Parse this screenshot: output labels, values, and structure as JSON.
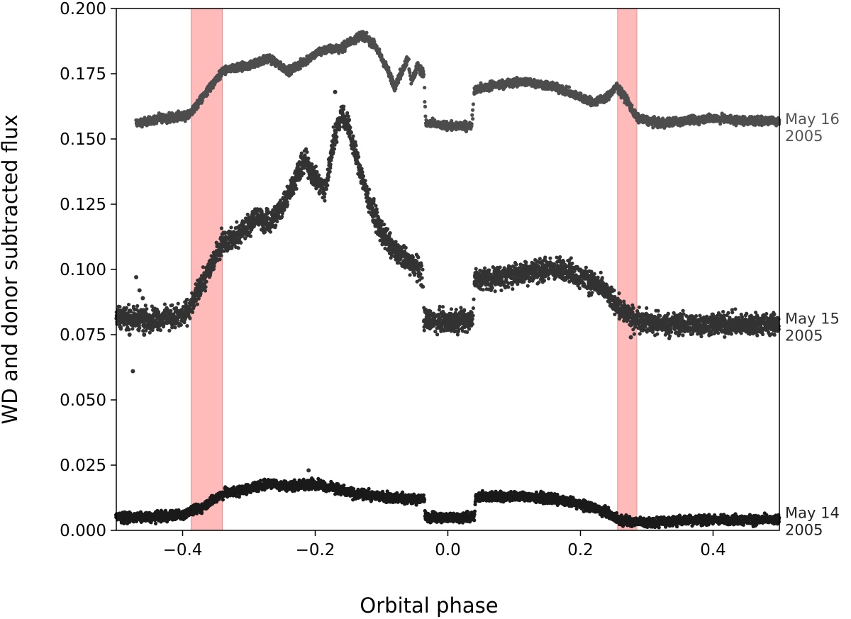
{
  "chart_data": {
    "type": "scatter",
    "title": "",
    "xlabel": "Orbital phase",
    "ylabel": "WD and donor subtracted flux",
    "xlim": [
      -0.5,
      0.5
    ],
    "ylim": [
      0.0,
      0.2
    ],
    "x_ticks": [
      -0.4,
      -0.2,
      0.0,
      0.2,
      0.4
    ],
    "x_tick_labels": [
      "−0.4",
      "−0.2",
      "0.0",
      "0.2",
      "0.4"
    ],
    "y_ticks": [
      0.0,
      0.025,
      0.05,
      0.075,
      0.1,
      0.125,
      0.15,
      0.175,
      0.2
    ],
    "y_tick_labels": [
      "0.000",
      "0.025",
      "0.050",
      "0.075",
      "0.100",
      "0.125",
      "0.150",
      "0.175",
      "0.200"
    ],
    "grid": false,
    "highlight_bands": [
      {
        "x_range": [
          -0.387,
          -0.34
        ],
        "color": "#ffb3b3"
      },
      {
        "x_range": [
          0.256,
          0.285
        ],
        "color": "#ffb3b3"
      }
    ],
    "series": [
      {
        "label_line1": "May 16",
        "label_line2": "2005",
        "label_y": 0.1555,
        "color": "#4d4d4d",
        "label_color": "#555555",
        "jitter": 0.0013,
        "points": [
          [
            -0.47,
            0.156
          ],
          [
            -0.43,
            0.158
          ],
          [
            -0.39,
            0.159
          ],
          [
            -0.37,
            0.166
          ],
          [
            -0.34,
            0.176
          ],
          [
            -0.3,
            0.178
          ],
          [
            -0.27,
            0.181
          ],
          [
            -0.24,
            0.176
          ],
          [
            -0.22,
            0.179
          ],
          [
            -0.19,
            0.184
          ],
          [
            -0.16,
            0.185
          ],
          [
            -0.13,
            0.19
          ],
          [
            -0.11,
            0.186
          ],
          [
            -0.09,
            0.176
          ],
          [
            -0.08,
            0.17
          ],
          [
            -0.06,
            0.181
          ],
          [
            -0.055,
            0.172
          ],
          [
            -0.045,
            0.178
          ],
          [
            -0.036,
            0.175
          ],
          [
            -0.035,
            0.164
          ],
          [
            -0.033,
            0.156
          ],
          [
            0.0,
            0.155
          ],
          [
            0.036,
            0.155
          ],
          [
            0.038,
            0.162
          ],
          [
            0.04,
            0.169
          ],
          [
            0.08,
            0.171
          ],
          [
            0.12,
            0.172
          ],
          [
            0.16,
            0.17
          ],
          [
            0.2,
            0.166
          ],
          [
            0.22,
            0.164
          ],
          [
            0.24,
            0.166
          ],
          [
            0.255,
            0.17
          ],
          [
            0.27,
            0.165
          ],
          [
            0.285,
            0.158
          ],
          [
            0.32,
            0.156
          ],
          [
            0.36,
            0.157
          ],
          [
            0.4,
            0.158
          ],
          [
            0.45,
            0.157
          ],
          [
            0.5,
            0.157
          ]
        ]
      },
      {
        "label_line1": "May 15",
        "label_line2": "2005",
        "label_y": 0.079,
        "color": "#333333",
        "label_color": "#333333",
        "jitter": 0.0035,
        "points": [
          [
            -0.5,
            0.082
          ],
          [
            -0.44,
            0.081
          ],
          [
            -0.4,
            0.082
          ],
          [
            -0.385,
            0.087
          ],
          [
            -0.36,
            0.1
          ],
          [
            -0.34,
            0.111
          ],
          [
            -0.32,
            0.112
          ],
          [
            -0.29,
            0.12
          ],
          [
            -0.27,
            0.118
          ],
          [
            -0.25,
            0.124
          ],
          [
            -0.23,
            0.135
          ],
          [
            -0.215,
            0.142
          ],
          [
            -0.2,
            0.135
          ],
          [
            -0.185,
            0.13
          ],
          [
            -0.172,
            0.15
          ],
          [
            -0.16,
            0.16
          ],
          [
            -0.15,
            0.155
          ],
          [
            -0.14,
            0.145
          ],
          [
            -0.12,
            0.127
          ],
          [
            -0.1,
            0.114
          ],
          [
            -0.08,
            0.107
          ],
          [
            -0.06,
            0.103
          ],
          [
            -0.04,
            0.1
          ],
          [
            -0.037,
            0.095
          ],
          [
            -0.036,
            0.081
          ],
          [
            0.0,
            0.08
          ],
          [
            0.038,
            0.081
          ],
          [
            0.04,
            0.096
          ],
          [
            0.08,
            0.097
          ],
          [
            0.12,
            0.099
          ],
          [
            0.15,
            0.1
          ],
          [
            0.18,
            0.1
          ],
          [
            0.2,
            0.097
          ],
          [
            0.22,
            0.095
          ],
          [
            0.24,
            0.091
          ],
          [
            0.26,
            0.085
          ],
          [
            0.28,
            0.081
          ],
          [
            0.32,
            0.079
          ],
          [
            0.4,
            0.079
          ],
          [
            0.45,
            0.079
          ],
          [
            0.5,
            0.079
          ]
        ]
      },
      {
        "label_line1": "May 14",
        "label_line2": "2005",
        "label_y": 0.0045,
        "color": "#1a1a1a",
        "label_color": "#222222",
        "jitter": 0.0015,
        "points": [
          [
            -0.5,
            0.005
          ],
          [
            -0.45,
            0.005
          ],
          [
            -0.4,
            0.006
          ],
          [
            -0.37,
            0.009
          ],
          [
            -0.34,
            0.014
          ],
          [
            -0.3,
            0.016
          ],
          [
            -0.27,
            0.018
          ],
          [
            -0.24,
            0.017
          ],
          [
            -0.2,
            0.018
          ],
          [
            -0.17,
            0.016
          ],
          [
            -0.14,
            0.014
          ],
          [
            -0.1,
            0.013
          ],
          [
            -0.06,
            0.012
          ],
          [
            -0.035,
            0.012
          ],
          [
            -0.034,
            0.005
          ],
          [
            0.0,
            0.005
          ],
          [
            0.04,
            0.005
          ],
          [
            0.042,
            0.013
          ],
          [
            0.08,
            0.013
          ],
          [
            0.12,
            0.013
          ],
          [
            0.16,
            0.012
          ],
          [
            0.2,
            0.01
          ],
          [
            0.23,
            0.008
          ],
          [
            0.26,
            0.004
          ],
          [
            0.3,
            0.003
          ],
          [
            0.36,
            0.004
          ],
          [
            0.42,
            0.004
          ],
          [
            0.5,
            0.004
          ]
        ]
      }
    ],
    "outliers": [
      [
        -0.475,
        0.061
      ],
      [
        -0.47,
        0.097
      ],
      [
        -0.465,
        0.092
      ],
      [
        -0.46,
        0.089
      ],
      [
        -0.48,
        0.075
      ],
      [
        -0.458,
        0.075
      ],
      [
        0.276,
        0.074
      ],
      [
        -0.04,
        0.094
      ],
      [
        -0.21,
        0.023
      ],
      [
        -0.17,
        0.168
      ],
      [
        -0.3,
        0.114
      ]
    ]
  }
}
